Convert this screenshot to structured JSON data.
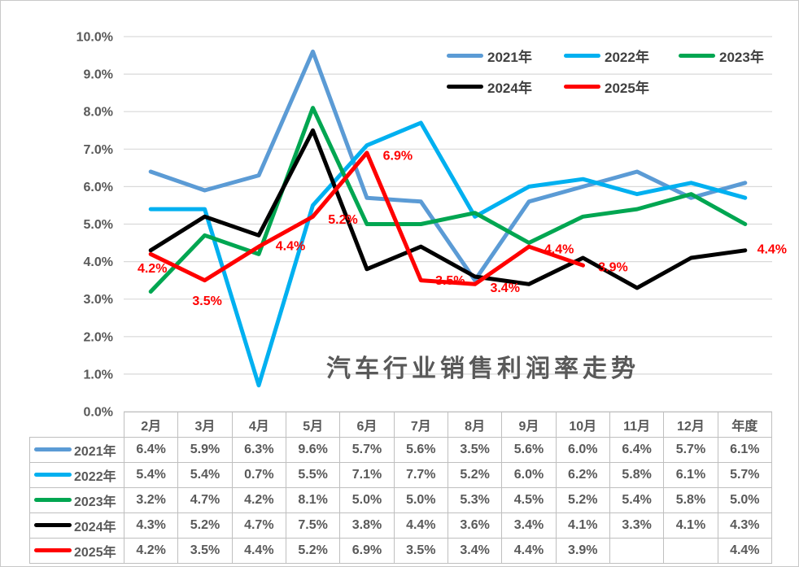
{
  "chart_data": {
    "type": "line",
    "title": "汽车行业销售利润率走势",
    "categories": [
      "2月",
      "3月",
      "4月",
      "5月",
      "6月",
      "7月",
      "8月",
      "9月",
      "10月",
      "11月",
      "12月",
      "年度"
    ],
    "ylim": [
      0,
      10
    ],
    "y_tick_step": 1,
    "y_tick_labels": [
      "0.0%",
      "1.0%",
      "2.0%",
      "3.0%",
      "4.0%",
      "5.0%",
      "6.0%",
      "7.0%",
      "8.0%",
      "9.0%",
      "10.0%"
    ],
    "grid": true,
    "legend_position": "top-right",
    "colors": {
      "gridline": "#d9d9d9",
      "axis_text": "#595959",
      "table_border": "#bfbfbf",
      "data_label": "#ff0000"
    },
    "series": [
      {
        "name": "2021年",
        "color": "#5b9bd5",
        "values": [
          6.4,
          5.9,
          6.3,
          9.6,
          5.7,
          5.6,
          3.5,
          5.6,
          6.0,
          6.4,
          5.7,
          6.1
        ]
      },
      {
        "name": "2022年",
        "color": "#00b0f0",
        "values": [
          5.4,
          5.4,
          0.7,
          5.5,
          7.1,
          7.7,
          5.2,
          6.0,
          6.2,
          5.8,
          6.1,
          5.7
        ]
      },
      {
        "name": "2023年",
        "color": "#00a651",
        "values": [
          3.2,
          4.7,
          4.2,
          8.1,
          5.0,
          5.0,
          5.3,
          4.5,
          5.2,
          5.4,
          5.8,
          5.0
        ]
      },
      {
        "name": "2024年",
        "color": "#000000",
        "values": [
          4.3,
          5.2,
          4.7,
          7.5,
          3.8,
          4.4,
          3.6,
          3.4,
          4.1,
          3.3,
          4.1,
          4.3
        ]
      },
      {
        "name": "2025年",
        "color": "#ff0000",
        "values": [
          4.2,
          3.5,
          4.4,
          5.2,
          6.9,
          3.5,
          3.4,
          4.4,
          3.9,
          null,
          null,
          4.4
        ],
        "data_labels": [
          {
            "x_index": 0,
            "text": "4.2%",
            "dx": 2,
            "dy": 17
          },
          {
            "x_index": 1,
            "text": "3.5%",
            "dx": 3,
            "dy": 25
          },
          {
            "x_index": 2,
            "text": "4.4%",
            "dx": 39,
            "dy": -1
          },
          {
            "x_index": 3,
            "text": "5.2%",
            "dx": 37,
            "dy": 3
          },
          {
            "x_index": 4,
            "text": "6.9%",
            "dx": 38,
            "dy": 3
          },
          {
            "x_index": 5,
            "text": "3.5%",
            "dx": 36,
            "dy": 0
          },
          {
            "x_index": 6,
            "text": "3.4%",
            "dx": 37,
            "dy": 4
          },
          {
            "x_index": 7,
            "text": "4.4%",
            "dx": 37,
            "dy": 3
          },
          {
            "x_index": 8,
            "text": "3.9%",
            "dx": 37,
            "dy": 2
          },
          {
            "x_index": 11,
            "text": "4.4%",
            "dx": 33,
            "dy": 3
          }
        ]
      }
    ]
  },
  "table": {
    "col_headers": [
      "2月",
      "3月",
      "4月",
      "5月",
      "6月",
      "7月",
      "8月",
      "9月",
      "10月",
      "11月",
      "12月",
      "年度"
    ],
    "rows": [
      {
        "label": "2021年",
        "color": "#5b9bd5",
        "cells": [
          "6.4%",
          "5.9%",
          "6.3%",
          "9.6%",
          "5.7%",
          "5.6%",
          "3.5%",
          "5.6%",
          "6.0%",
          "6.4%",
          "5.7%",
          "6.1%"
        ]
      },
      {
        "label": "2022年",
        "color": "#00b0f0",
        "cells": [
          "5.4%",
          "5.4%",
          "0.7%",
          "5.5%",
          "7.1%",
          "7.7%",
          "5.2%",
          "6.0%",
          "6.2%",
          "5.8%",
          "6.1%",
          "5.7%"
        ]
      },
      {
        "label": "2023年",
        "color": "#00a651",
        "cells": [
          "3.2%",
          "4.7%",
          "4.2%",
          "8.1%",
          "5.0%",
          "5.0%",
          "5.3%",
          "4.5%",
          "5.2%",
          "5.4%",
          "5.8%",
          "5.0%"
        ]
      },
      {
        "label": "2024年",
        "color": "#000000",
        "cells": [
          "4.3%",
          "5.2%",
          "4.7%",
          "7.5%",
          "3.8%",
          "4.4%",
          "3.6%",
          "3.4%",
          "4.1%",
          "3.3%",
          "4.1%",
          "4.3%"
        ]
      },
      {
        "label": "2025年",
        "color": "#ff0000",
        "cells": [
          "4.2%",
          "3.5%",
          "4.4%",
          "5.2%",
          "6.9%",
          "3.5%",
          "3.4%",
          "4.4%",
          "3.9%",
          "",
          "",
          "4.4%"
        ]
      }
    ]
  }
}
